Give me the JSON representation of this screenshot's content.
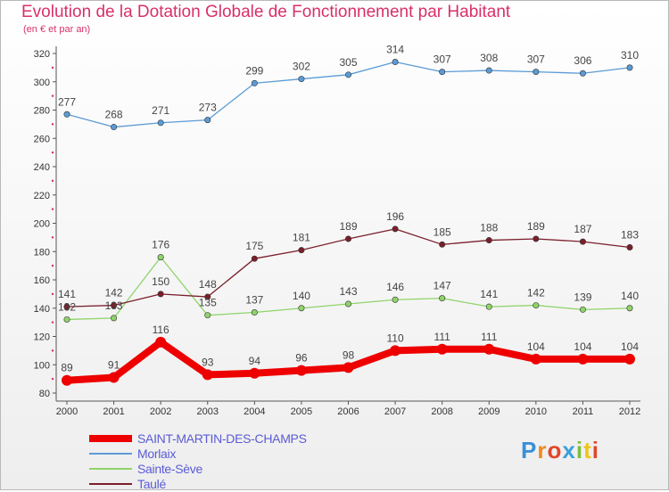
{
  "chart_data": {
    "type": "line",
    "title": "Evolution de la Dotation Globale de Fonctionnement par Habitant",
    "subtitle": "(en € et par an)",
    "x": [
      2000,
      2001,
      2002,
      2003,
      2004,
      2005,
      2006,
      2007,
      2008,
      2009,
      2010,
      2011,
      2012
    ],
    "ylim": [
      80,
      320
    ],
    "yticks": [
      80,
      100,
      120,
      140,
      160,
      180,
      200,
      220,
      240,
      260,
      280,
      300,
      320
    ],
    "grid": false,
    "legend_position": "bottom-left",
    "series": [
      {
        "name": "SAINT-MARTIN-DES-CHAMPS",
        "color": "#ee0000",
        "values": [
          89,
          91,
          116,
          93,
          94,
          96,
          98,
          110,
          111,
          111,
          104,
          104,
          104
        ]
      },
      {
        "name": "Morlaix",
        "color": "#5b9bd5",
        "values": [
          277,
          268,
          271,
          273,
          299,
          302,
          305,
          314,
          307,
          308,
          307,
          306,
          310
        ]
      },
      {
        "name": "Sainte-Sève",
        "color": "#8fd46a",
        "values": [
          132,
          133,
          176,
          135,
          137,
          140,
          143,
          146,
          147,
          141,
          142,
          139,
          140
        ]
      },
      {
        "name": "Taulé",
        "color": "#7a1f2b",
        "values": [
          141,
          142,
          150,
          148,
          175,
          181,
          189,
          196,
          185,
          188,
          189,
          187,
          183
        ]
      }
    ]
  },
  "logo": {
    "letters": [
      "P",
      "r",
      "o",
      "x",
      "i",
      "t",
      "i"
    ]
  }
}
